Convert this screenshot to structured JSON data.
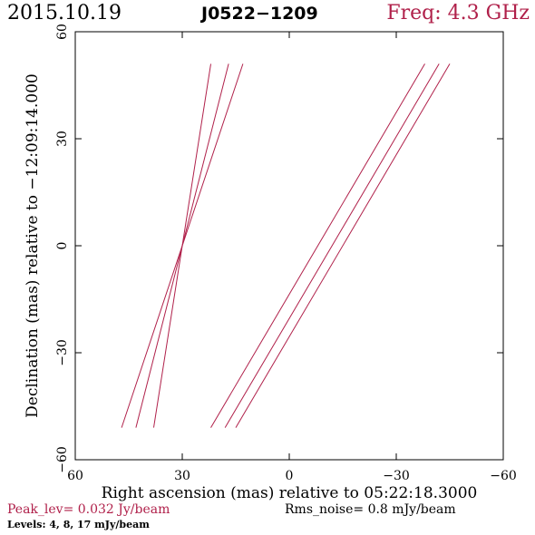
{
  "header": {
    "date": "2015.10.19",
    "source": "J0522−1209",
    "freq": "Freq: 4.3 GHz"
  },
  "footer": {
    "peak": "Peak_lev=  0.032 Jy/beam",
    "rms": "Rms_noise=   0.8 mJy/beam",
    "levels": "Levels:   4,   8,  17 mJy/beam"
  },
  "colors": {
    "contour": "#b0204a",
    "frame": "#000000"
  },
  "chart_data": {
    "type": "line",
    "title": "J0522−1209",
    "xlabel": "Right ascension (mas) relative to 05:22:18.3000",
    "ylabel": "Declination (mas) relative to −12:09:14.000",
    "xlim": [
      60,
      -60
    ],
    "ylim": [
      -60,
      60
    ],
    "x_ticks": [
      60,
      30,
      0,
      -30,
      -60
    ],
    "x_tick_labels": [
      "60",
      "30",
      "0",
      "−30",
      "−60"
    ],
    "y_ticks": [
      -60,
      -30,
      0,
      30,
      60
    ],
    "y_tick_labels": [
      "−60",
      "−30",
      "0",
      "30",
      "60"
    ],
    "grid": false,
    "series": [
      {
        "x": [
          47,
          13
        ],
        "y": [
          -51,
          51
        ]
      },
      {
        "x": [
          43,
          17
        ],
        "y": [
          -51,
          51
        ]
      },
      {
        "x": [
          38,
          22
        ],
        "y": [
          -51,
          51
        ]
      },
      {
        "x": [
          22,
          -38
        ],
        "y": [
          -51,
          51
        ]
      },
      {
        "x": [
          18,
          -42
        ],
        "y": [
          -51,
          51
        ]
      },
      {
        "x": [
          15,
          -45
        ],
        "y": [
          -51,
          51
        ]
      }
    ]
  }
}
